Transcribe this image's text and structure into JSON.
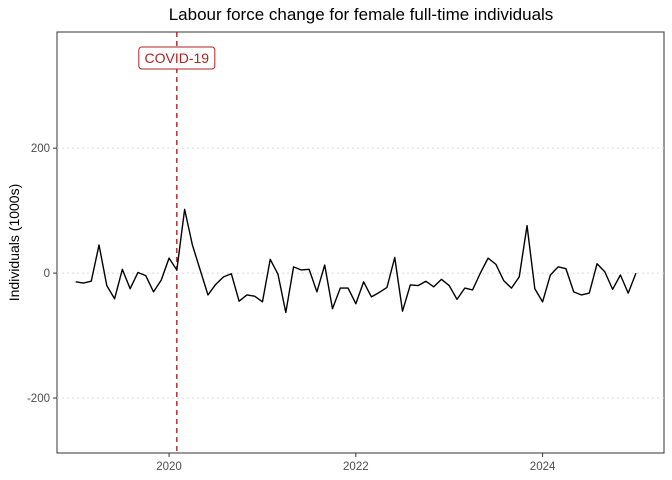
{
  "chart_data": {
    "type": "line",
    "title": "Labour force change for female full-time individuals",
    "xlabel": "",
    "ylabel": "Individuals (1000s)",
    "xlim": [
      2018.8,
      2025.3
    ],
    "ylim": [
      -288,
      386
    ],
    "x_ticks": [
      2020,
      2022,
      2024
    ],
    "x_tick_labels": [
      "2020",
      "2022",
      "2024"
    ],
    "y_ticks": [
      -200,
      0,
      200
    ],
    "y_tick_labels": [
      "-200",
      "0",
      "200"
    ],
    "grid": "major y dotted",
    "line_color": "#000000",
    "annotation": {
      "label": "COVID-19",
      "x": 2020.083,
      "color": "#b22222",
      "style": "dashed vertical line"
    },
    "x_start": 2019.0,
    "x_step_months": 1,
    "values": [
      -14,
      -16,
      -13,
      45,
      -20,
      -41,
      6,
      -25,
      1,
      -4,
      -30,
      -11,
      24,
      5,
      102,
      45,
      5,
      -35,
      -18,
      -6,
      -1,
      -45,
      -35,
      -37,
      -46,
      22,
      -2,
      -63,
      10,
      5,
      6,
      -30,
      13,
      -57,
      -24,
      -24,
      -49,
      -14,
      -38,
      -31,
      -23,
      25,
      -61,
      -19,
      -20,
      -13,
      -22,
      -10,
      -20,
      -42,
      -24,
      -27,
      0,
      24,
      14,
      -12,
      -24,
      -6,
      76,
      -25,
      -46,
      -3,
      10,
      7,
      -30,
      -35,
      -32,
      15,
      2,
      -26,
      -3,
      -32,
      0
    ]
  }
}
